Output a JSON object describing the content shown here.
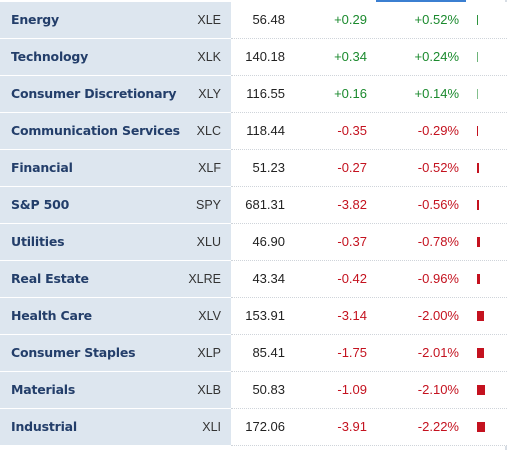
{
  "colors": {
    "positive": "#1b8a2e",
    "negative": "#c4121f",
    "sector_text": "#233e6a",
    "name_bg": "#dde6ef"
  },
  "rows": [
    {
      "sector": "Energy",
      "ticker": "XLE",
      "price": "56.48",
      "change": "+0.29",
      "percent": "+0.52%",
      "pct_value": 0.52
    },
    {
      "sector": "Technology",
      "ticker": "XLK",
      "price": "140.18",
      "change": "+0.34",
      "percent": "+0.24%",
      "pct_value": 0.24
    },
    {
      "sector": "Consumer Discretionary",
      "ticker": "XLY",
      "price": "116.55",
      "change": "+0.16",
      "percent": "+0.14%",
      "pct_value": 0.14
    },
    {
      "sector": "Communication Services",
      "ticker": "XLC",
      "price": "118.44",
      "change": "-0.35",
      "percent": "-0.29%",
      "pct_value": -0.29
    },
    {
      "sector": "Financial",
      "ticker": "XLF",
      "price": "51.23",
      "change": "-0.27",
      "percent": "-0.52%",
      "pct_value": -0.52
    },
    {
      "sector": "S&P 500",
      "ticker": "SPY",
      "price": "681.31",
      "change": "-3.82",
      "percent": "-0.56%",
      "pct_value": -0.56
    },
    {
      "sector": "Utilities",
      "ticker": "XLU",
      "price": "46.90",
      "change": "-0.37",
      "percent": "-0.78%",
      "pct_value": -0.78
    },
    {
      "sector": "Real Estate",
      "ticker": "XLRE",
      "price": "43.34",
      "change": "-0.42",
      "percent": "-0.96%",
      "pct_value": -0.96
    },
    {
      "sector": "Health Care",
      "ticker": "XLV",
      "price": "153.91",
      "change": "-3.14",
      "percent": "-2.00%",
      "pct_value": -2.0
    },
    {
      "sector": "Consumer Staples",
      "ticker": "XLP",
      "price": "85.41",
      "change": "-1.75",
      "percent": "-2.01%",
      "pct_value": -2.01
    },
    {
      "sector": "Materials",
      "ticker": "XLB",
      "price": "50.83",
      "change": "-1.09",
      "percent": "-2.10%",
      "pct_value": -2.1
    },
    {
      "sector": "Industrial",
      "ticker": "XLI",
      "price": "172.06",
      "change": "-3.91",
      "percent": "-2.22%",
      "pct_value": -2.22
    }
  ]
}
